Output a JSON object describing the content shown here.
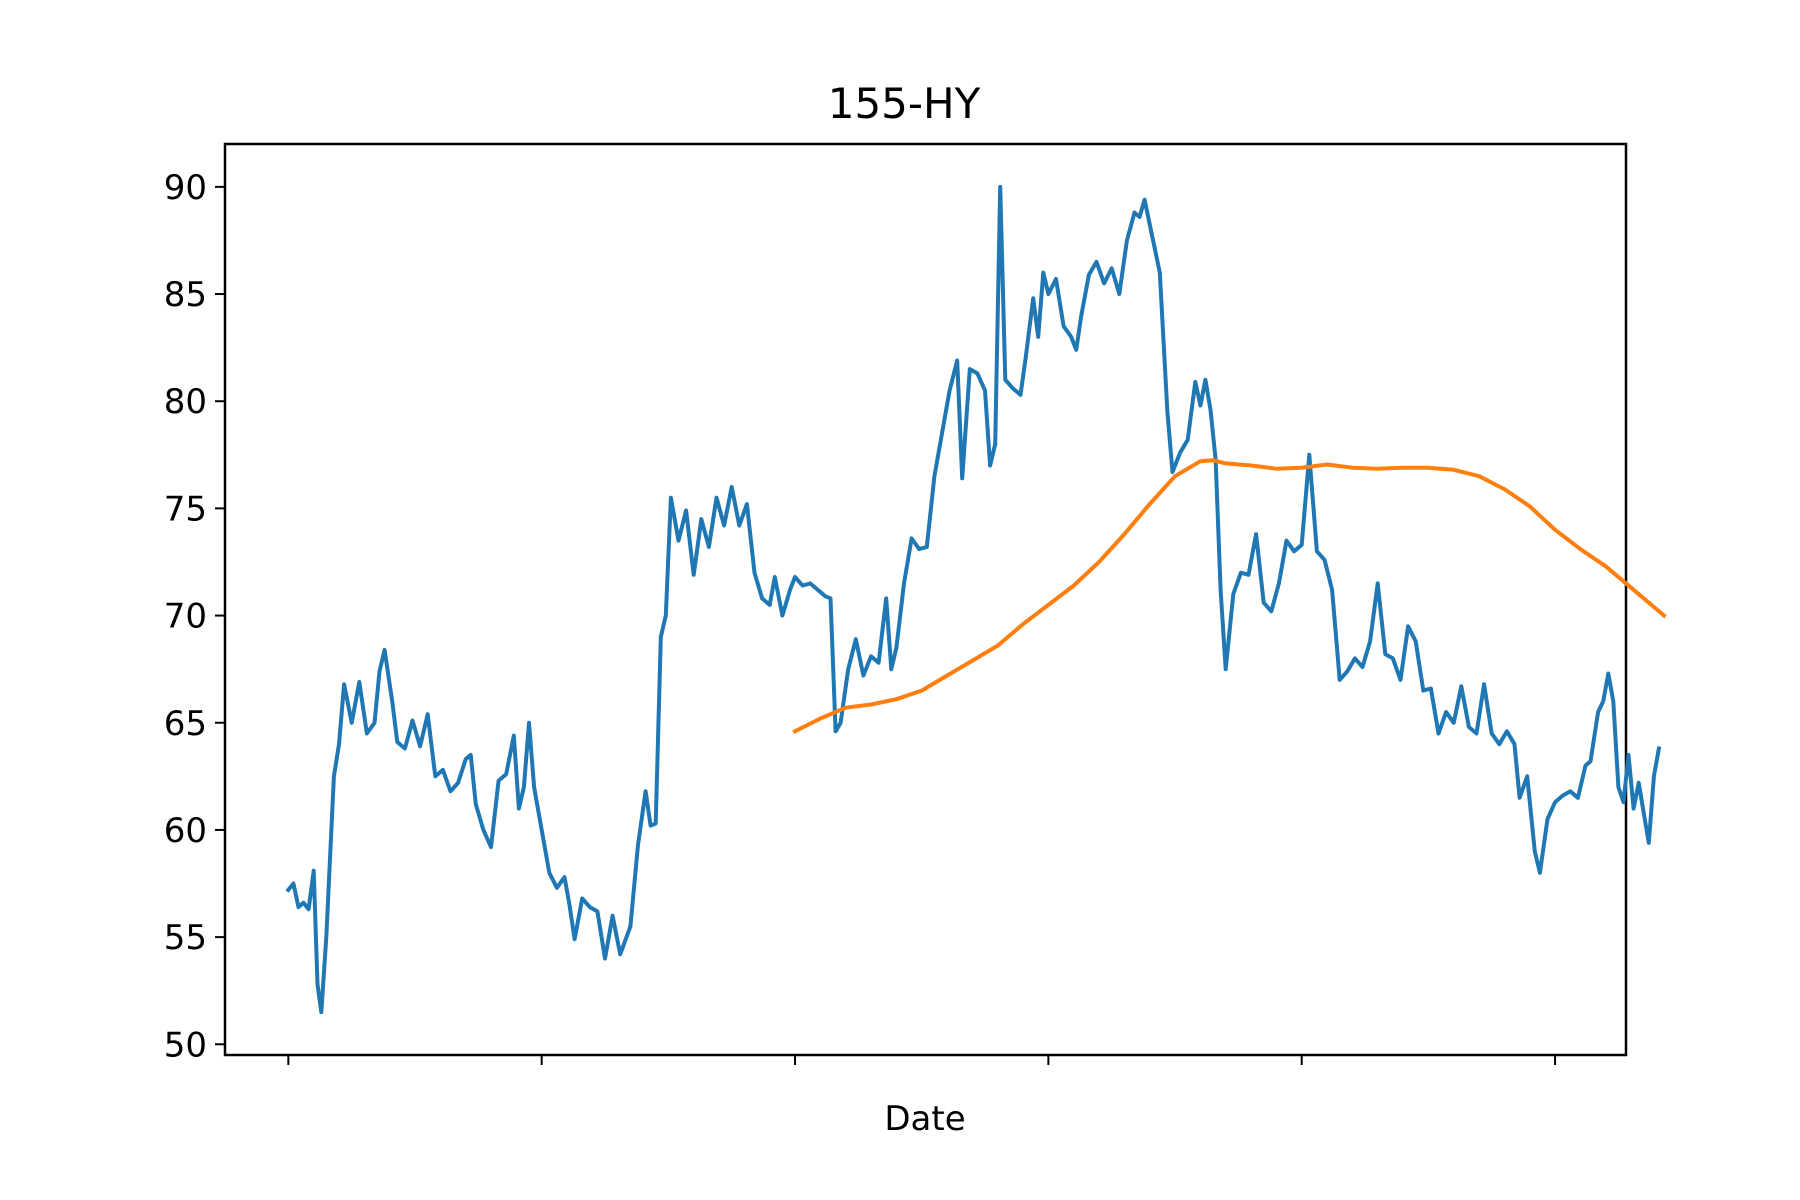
{
  "chart_data": {
    "type": "line",
    "title": "155-HY",
    "xlabel": "Date",
    "ylabel": "",
    "ylim": [
      49.5,
      92
    ],
    "xlim": [
      -0.25,
      5.28
    ],
    "x_tick_labels": [
      "",
      "",
      "",
      "",
      "",
      ""
    ],
    "y_ticks": [
      50,
      55,
      60,
      65,
      70,
      75,
      80,
      85,
      90
    ],
    "grid": false,
    "legend": "none",
    "series": [
      {
        "color": "#1f77b4",
        "points": [
          [
            0.0,
            57.2
          ],
          [
            0.02,
            57.5
          ],
          [
            0.04,
            56.4
          ],
          [
            0.06,
            56.6
          ],
          [
            0.08,
            56.3
          ],
          [
            0.1,
            58.1
          ],
          [
            0.115,
            52.8
          ],
          [
            0.13,
            51.5
          ],
          [
            0.15,
            55.0
          ],
          [
            0.18,
            62.5
          ],
          [
            0.2,
            64.0
          ],
          [
            0.22,
            66.8
          ],
          [
            0.25,
            65.0
          ],
          [
            0.28,
            66.9
          ],
          [
            0.31,
            64.5
          ],
          [
            0.34,
            65.0
          ],
          [
            0.36,
            67.4
          ],
          [
            0.38,
            68.4
          ],
          [
            0.41,
            66.0
          ],
          [
            0.43,
            64.1
          ],
          [
            0.46,
            63.8
          ],
          [
            0.49,
            65.1
          ],
          [
            0.52,
            63.9
          ],
          [
            0.55,
            65.4
          ],
          [
            0.58,
            62.5
          ],
          [
            0.61,
            62.8
          ],
          [
            0.64,
            61.8
          ],
          [
            0.67,
            62.2
          ],
          [
            0.7,
            63.3
          ],
          [
            0.72,
            63.5
          ],
          [
            0.74,
            61.2
          ],
          [
            0.77,
            60.0
          ],
          [
            0.8,
            59.2
          ],
          [
            0.83,
            62.3
          ],
          [
            0.86,
            62.6
          ],
          [
            0.89,
            64.4
          ],
          [
            0.91,
            61.0
          ],
          [
            0.93,
            62.0
          ],
          [
            0.95,
            65.0
          ],
          [
            0.97,
            62.0
          ],
          [
            1.0,
            60.0
          ],
          [
            1.03,
            58.0
          ],
          [
            1.06,
            57.3
          ],
          [
            1.09,
            57.8
          ],
          [
            1.11,
            56.5
          ],
          [
            1.13,
            54.9
          ],
          [
            1.16,
            56.8
          ],
          [
            1.19,
            56.4
          ],
          [
            1.22,
            56.2
          ],
          [
            1.25,
            54.0
          ],
          [
            1.28,
            56.0
          ],
          [
            1.31,
            54.2
          ],
          [
            1.35,
            55.5
          ],
          [
            1.38,
            59.3
          ],
          [
            1.41,
            61.8
          ],
          [
            1.43,
            60.2
          ],
          [
            1.45,
            60.3
          ],
          [
            1.47,
            69.0
          ],
          [
            1.49,
            70.0
          ],
          [
            1.51,
            75.5
          ],
          [
            1.54,
            73.5
          ],
          [
            1.57,
            74.9
          ],
          [
            1.6,
            71.9
          ],
          [
            1.63,
            74.5
          ],
          [
            1.66,
            73.2
          ],
          [
            1.69,
            75.5
          ],
          [
            1.72,
            74.2
          ],
          [
            1.75,
            76.0
          ],
          [
            1.78,
            74.2
          ],
          [
            1.81,
            75.2
          ],
          [
            1.84,
            72.0
          ],
          [
            1.87,
            70.8
          ],
          [
            1.9,
            70.5
          ],
          [
            1.92,
            71.8
          ],
          [
            1.95,
            70.0
          ],
          [
            1.98,
            71.2
          ],
          [
            2.0,
            71.8
          ],
          [
            2.03,
            71.4
          ],
          [
            2.06,
            71.5
          ],
          [
            2.09,
            71.2
          ],
          [
            2.12,
            70.9
          ],
          [
            2.14,
            70.8
          ],
          [
            2.16,
            64.6
          ],
          [
            2.18,
            65.0
          ],
          [
            2.21,
            67.5
          ],
          [
            2.24,
            68.9
          ],
          [
            2.27,
            67.2
          ],
          [
            2.3,
            68.1
          ],
          [
            2.33,
            67.8
          ],
          [
            2.36,
            70.8
          ],
          [
            2.38,
            67.5
          ],
          [
            2.4,
            68.5
          ],
          [
            2.43,
            71.5
          ],
          [
            2.46,
            73.6
          ],
          [
            2.49,
            73.1
          ],
          [
            2.52,
            73.2
          ],
          [
            2.55,
            76.5
          ],
          [
            2.58,
            78.5
          ],
          [
            2.61,
            80.5
          ],
          [
            2.64,
            81.9
          ],
          [
            2.66,
            76.4
          ],
          [
            2.69,
            81.5
          ],
          [
            2.72,
            81.3
          ],
          [
            2.75,
            80.5
          ],
          [
            2.77,
            77.0
          ],
          [
            2.79,
            78.0
          ],
          [
            2.81,
            90.0
          ],
          [
            2.83,
            81.0
          ],
          [
            2.86,
            80.6
          ],
          [
            2.89,
            80.3
          ],
          [
            2.91,
            82.0
          ],
          [
            2.94,
            84.8
          ],
          [
            2.96,
            83.0
          ],
          [
            2.98,
            86.0
          ],
          [
            3.0,
            85.0
          ],
          [
            3.03,
            85.7
          ],
          [
            3.06,
            83.5
          ],
          [
            3.09,
            83.0
          ],
          [
            3.11,
            82.4
          ],
          [
            3.13,
            84.0
          ],
          [
            3.16,
            85.9
          ],
          [
            3.19,
            86.5
          ],
          [
            3.22,
            85.5
          ],
          [
            3.25,
            86.2
          ],
          [
            3.28,
            85.0
          ],
          [
            3.31,
            87.5
          ],
          [
            3.34,
            88.8
          ],
          [
            3.36,
            88.6
          ],
          [
            3.38,
            89.4
          ],
          [
            3.41,
            87.7
          ],
          [
            3.44,
            86.0
          ],
          [
            3.47,
            79.5
          ],
          [
            3.49,
            76.7
          ],
          [
            3.52,
            77.6
          ],
          [
            3.55,
            78.2
          ],
          [
            3.58,
            80.9
          ],
          [
            3.6,
            79.8
          ],
          [
            3.62,
            81.0
          ],
          [
            3.64,
            79.6
          ],
          [
            3.66,
            77.3
          ],
          [
            3.68,
            71.2
          ],
          [
            3.7,
            67.5
          ],
          [
            3.73,
            71.0
          ],
          [
            3.76,
            72.0
          ],
          [
            3.79,
            71.9
          ],
          [
            3.82,
            73.8
          ],
          [
            3.85,
            70.6
          ],
          [
            3.88,
            70.2
          ],
          [
            3.91,
            71.5
          ],
          [
            3.94,
            73.5
          ],
          [
            3.97,
            73.0
          ],
          [
            4.0,
            73.3
          ],
          [
            4.03,
            77.5
          ],
          [
            4.06,
            73.0
          ],
          [
            4.09,
            72.6
          ],
          [
            4.12,
            71.2
          ],
          [
            4.15,
            67.0
          ],
          [
            4.18,
            67.4
          ],
          [
            4.21,
            68.0
          ],
          [
            4.24,
            67.6
          ],
          [
            4.27,
            68.8
          ],
          [
            4.3,
            71.5
          ],
          [
            4.33,
            68.2
          ],
          [
            4.36,
            68.0
          ],
          [
            4.39,
            67.0
          ],
          [
            4.42,
            69.5
          ],
          [
            4.45,
            68.8
          ],
          [
            4.48,
            66.5
          ],
          [
            4.51,
            66.6
          ],
          [
            4.54,
            64.5
          ],
          [
            4.57,
            65.5
          ],
          [
            4.6,
            65.0
          ],
          [
            4.63,
            66.7
          ],
          [
            4.66,
            64.8
          ],
          [
            4.69,
            64.5
          ],
          [
            4.72,
            66.8
          ],
          [
            4.75,
            64.5
          ],
          [
            4.78,
            64.0
          ],
          [
            4.81,
            64.6
          ],
          [
            4.84,
            64.0
          ],
          [
            4.86,
            61.5
          ],
          [
            4.89,
            62.5
          ],
          [
            4.92,
            59.0
          ],
          [
            4.94,
            58.0
          ],
          [
            4.97,
            60.5
          ],
          [
            5.0,
            61.3
          ],
          [
            5.03,
            61.6
          ],
          [
            5.06,
            61.8
          ],
          [
            5.09,
            61.5
          ],
          [
            5.12,
            63.0
          ],
          [
            5.14,
            63.2
          ],
          [
            5.17,
            65.5
          ],
          [
            5.19,
            66.0
          ],
          [
            5.21,
            67.3
          ],
          [
            5.23,
            66.0
          ],
          [
            5.25,
            62.0
          ],
          [
            5.27,
            61.3
          ],
          [
            5.29,
            63.5
          ],
          [
            5.31,
            61.0
          ],
          [
            5.33,
            62.2
          ],
          [
            5.35,
            60.8
          ],
          [
            5.37,
            59.4
          ],
          [
            5.39,
            62.5
          ],
          [
            5.41,
            63.8
          ]
        ]
      },
      {
        "color": "#ff7f0e",
        "points": [
          [
            2.0,
            64.6
          ],
          [
            2.1,
            65.2
          ],
          [
            2.2,
            65.7
          ],
          [
            2.3,
            65.85
          ],
          [
            2.4,
            66.1
          ],
          [
            2.5,
            66.5
          ],
          [
            2.6,
            67.2
          ],
          [
            2.7,
            67.9
          ],
          [
            2.8,
            68.6
          ],
          [
            2.9,
            69.6
          ],
          [
            3.0,
            70.5
          ],
          [
            3.1,
            71.4
          ],
          [
            3.2,
            72.5
          ],
          [
            3.3,
            73.8
          ],
          [
            3.4,
            75.2
          ],
          [
            3.5,
            76.5
          ],
          [
            3.6,
            77.2
          ],
          [
            3.65,
            77.25
          ],
          [
            3.7,
            77.1
          ],
          [
            3.8,
            77.0
          ],
          [
            3.9,
            76.85
          ],
          [
            4.0,
            76.9
          ],
          [
            4.1,
            77.05
          ],
          [
            4.2,
            76.9
          ],
          [
            4.3,
            76.85
          ],
          [
            4.4,
            76.9
          ],
          [
            4.5,
            76.9
          ],
          [
            4.6,
            76.8
          ],
          [
            4.7,
            76.5
          ],
          [
            4.8,
            75.9
          ],
          [
            4.9,
            75.1
          ],
          [
            5.0,
            74.0
          ],
          [
            5.1,
            73.1
          ],
          [
            5.2,
            72.3
          ],
          [
            5.3,
            71.3
          ],
          [
            5.4,
            70.3
          ],
          [
            5.43,
            70.0
          ]
        ]
      }
    ]
  }
}
